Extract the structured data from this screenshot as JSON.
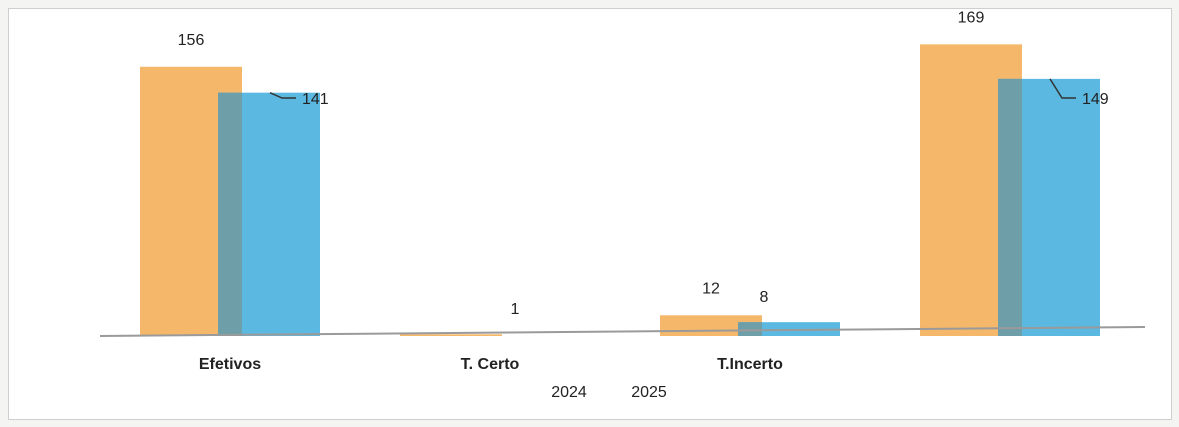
{
  "chart_data": {
    "type": "bar",
    "categories": [
      "Efetivos",
      "T. Certo",
      "T.Incerto",
      ""
    ],
    "series": [
      {
        "name": "2024",
        "values": [
          156,
          1,
          12,
          169
        ]
      },
      {
        "name": "2025",
        "values": [
          141,
          0,
          8,
          149
        ]
      }
    ],
    "data_labels": {
      "2024": [
        "156",
        "1",
        "12",
        "169"
      ],
      "2025": [
        "141",
        "",
        "8",
        "149"
      ]
    },
    "colors": {
      "2024": "#f5b86a",
      "2025": "#5bb8e0",
      "overlap": "#6e9ea8",
      "axis": "#9a9a9a"
    },
    "ylim": [
      0,
      175
    ],
    "legend": {
      "position": "bottom",
      "labels": [
        "2024",
        "2025"
      ]
    },
    "title": "",
    "xlabel": "",
    "ylabel": "",
    "grid": false
  }
}
